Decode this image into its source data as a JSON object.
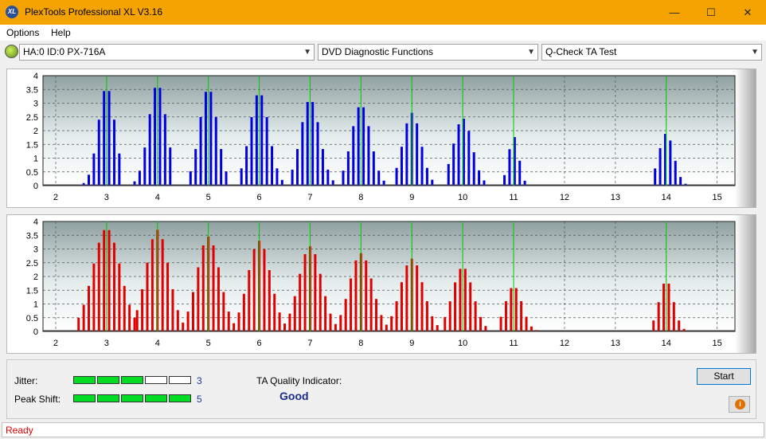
{
  "window": {
    "title": "PlexTools Professional XL V3.16",
    "icon": "XL",
    "controls": {
      "minimize": "—",
      "maximize": "☐",
      "close": "✕"
    }
  },
  "menu": [
    "Options",
    "Help"
  ],
  "toolbar": {
    "drive": "HA:0 ID:0  PX-716A",
    "function": "DVD Diagnostic Functions",
    "test": "Q-Check TA Test"
  },
  "colors": {
    "upper_bars": "#0000e0",
    "lower_bars": "#e00000",
    "marker_lines": "#00cc00",
    "title_bar": "#f4a300"
  },
  "chart_data": [
    {
      "type": "bar",
      "series_name": "",
      "ylim": [
        0,
        4
      ],
      "yticks": [
        0,
        0.5,
        1,
        1.5,
        2,
        2.5,
        3,
        3.5,
        4
      ],
      "xlim": [
        1.75,
        15.35
      ],
      "xticks": [
        2,
        3,
        4,
        5,
        6,
        7,
        8,
        9,
        10,
        11,
        12,
        13,
        14,
        15
      ],
      "markers": [
        3,
        4,
        5,
        6,
        7,
        8,
        9,
        10,
        11,
        14
      ],
      "peaks": [
        {
          "center": 3,
          "height": 3.6,
          "left": 2.55,
          "right": 3.25
        },
        {
          "center": 4,
          "height": 3.7,
          "left": 3.55,
          "right": 4.3
        },
        {
          "center": 5,
          "height": 3.55,
          "left": 4.65,
          "right": 5.4
        },
        {
          "center": 6,
          "height": 3.4,
          "left": 5.65,
          "right": 6.45
        },
        {
          "center": 7,
          "height": 3.15,
          "left": 6.65,
          "right": 7.45
        },
        {
          "center": 8,
          "height": 2.95,
          "left": 7.65,
          "right": 8.45
        },
        {
          "center": 9,
          "height": 2.65,
          "left": 8.7,
          "right": 9.45
        },
        {
          "center": 10,
          "height": 2.45,
          "left": 9.72,
          "right": 10.5
        },
        {
          "center": 11,
          "height": 1.8,
          "left": 10.82,
          "right": 11.25
        },
        {
          "center": 14,
          "height": 1.9,
          "left": 13.78,
          "right": 14.4
        }
      ]
    },
    {
      "type": "bar",
      "series_name": "",
      "ylim": [
        0,
        4
      ],
      "yticks": [
        0,
        0.5,
        1,
        1.5,
        2,
        2.5,
        3,
        3.5,
        4
      ],
      "xlim": [
        1.75,
        15.35
      ],
      "xticks": [
        2,
        3,
        4,
        5,
        6,
        7,
        8,
        9,
        10,
        11,
        12,
        13,
        14,
        15
      ],
      "markers": [
        3,
        4,
        5,
        6,
        7,
        8,
        9,
        10,
        11,
        14
      ],
      "peaks": [
        {
          "center": 3,
          "height": 3.75,
          "left": 2.45,
          "right": 3.6
        },
        {
          "center": 4,
          "height": 3.7,
          "left": 3.6,
          "right": 4.55
        },
        {
          "center": 5,
          "height": 3.45,
          "left": 4.6,
          "right": 5.55
        },
        {
          "center": 6,
          "height": 3.3,
          "left": 5.6,
          "right": 6.55
        },
        {
          "center": 7,
          "height": 3.1,
          "left": 6.6,
          "right": 7.55
        },
        {
          "center": 8,
          "height": 2.85,
          "left": 7.6,
          "right": 8.55
        },
        {
          "center": 9,
          "height": 2.65,
          "left": 8.6,
          "right": 9.55
        },
        {
          "center": 10,
          "height": 2.35,
          "left": 9.65,
          "right": 10.5
        },
        {
          "center": 11,
          "height": 1.65,
          "left": 10.75,
          "right": 11.45
        },
        {
          "center": 14,
          "height": 1.85,
          "left": 13.75,
          "right": 14.35
        }
      ]
    }
  ],
  "results": {
    "jitter_label": "Jitter:",
    "jitter_value": "3",
    "jitter_level": 3,
    "peak_shift_label": "Peak Shift:",
    "peak_shift_value": "5",
    "peak_shift_level": 5,
    "meter_segments": 5,
    "ta_label": "TA Quality Indicator:",
    "ta_value": "Good"
  },
  "buttons": {
    "start": "Start",
    "info": "i"
  },
  "status": "Ready"
}
